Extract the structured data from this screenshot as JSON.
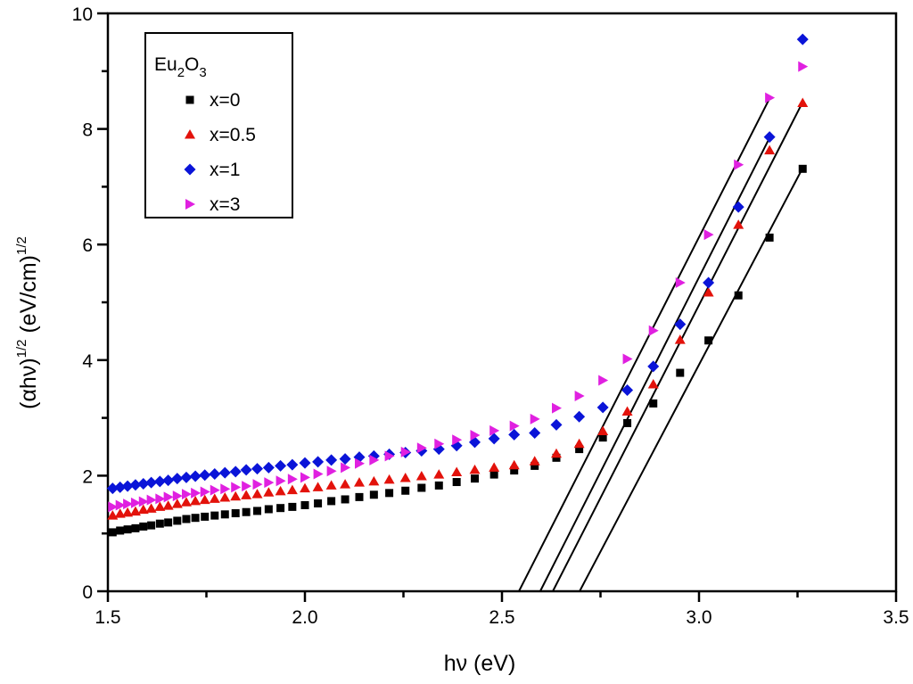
{
  "chart_data": {
    "type": "scatter",
    "title": "",
    "xlabel": "hν (eV)",
    "ylabel_parts": {
      "base1": "(αhν)",
      "exp1": "1/2",
      "base2": " (eV/cm)",
      "exp2": "1/2"
    },
    "xlim": [
      1.5,
      3.5
    ],
    "ylim": [
      0,
      10
    ],
    "x_ticks": [
      "1.5",
      "2.0",
      "2.5",
      "3.0",
      "3.5"
    ],
    "x_tick_values": [
      1.5,
      2.0,
      2.5,
      3.0,
      3.5
    ],
    "x_minor_ticks": [
      1.75,
      2.25,
      2.75,
      3.25
    ],
    "y_ticks": [
      "0",
      "2",
      "4",
      "6",
      "8",
      "10"
    ],
    "y_tick_values": [
      0,
      2,
      4,
      6,
      8,
      10
    ],
    "y_minor_ticks": [
      1,
      3,
      5,
      7,
      9
    ],
    "grid": false,
    "legend": {
      "title_base": "Eu",
      "title_sub1": "2",
      "title_mid": "O",
      "title_sub2": "3",
      "placement": "top-left"
    },
    "x": [
      1.512,
      1.531,
      1.55,
      1.57,
      1.59,
      1.61,
      1.632,
      1.653,
      1.676,
      1.699,
      1.722,
      1.746,
      1.771,
      1.797,
      1.824,
      1.851,
      1.879,
      1.908,
      1.938,
      1.968,
      2.0,
      2.033,
      2.067,
      2.102,
      2.138,
      2.175,
      2.214,
      2.255,
      2.296,
      2.34,
      2.385,
      2.431,
      2.48,
      2.531,
      2.583,
      2.638,
      2.696,
      2.756,
      2.818,
      2.884,
      2.952,
      3.024,
      3.1,
      3.179,
      3.263
    ],
    "series": [
      {
        "name": "x=0",
        "marker": "square",
        "color": "#000000",
        "values": [
          1.02,
          1.05,
          1.07,
          1.09,
          1.12,
          1.14,
          1.17,
          1.19,
          1.22,
          1.25,
          1.27,
          1.29,
          1.31,
          1.33,
          1.35,
          1.37,
          1.39,
          1.42,
          1.44,
          1.46,
          1.49,
          1.52,
          1.56,
          1.59,
          1.63,
          1.67,
          1.7,
          1.74,
          1.79,
          1.83,
          1.89,
          1.95,
          2.02,
          2.09,
          2.17,
          2.31,
          2.46,
          2.66,
          2.91,
          3.25,
          3.78,
          4.34,
          5.12,
          6.12,
          7.31
        ],
        "fit_line": {
          "x": [
            2.697,
            3.262
          ],
          "y": [
            0,
            7.31
          ]
        }
      },
      {
        "name": "x=0.5",
        "marker": "triangle-up",
        "color": "#e3120b",
        "values": [
          1.31,
          1.34,
          1.36,
          1.38,
          1.41,
          1.43,
          1.46,
          1.48,
          1.51,
          1.54,
          1.56,
          1.58,
          1.6,
          1.62,
          1.64,
          1.66,
          1.68,
          1.71,
          1.73,
          1.75,
          1.78,
          1.8,
          1.83,
          1.85,
          1.88,
          1.9,
          1.93,
          1.96,
          1.99,
          2.02,
          2.06,
          2.1,
          2.14,
          2.18,
          2.25,
          2.38,
          2.55,
          2.77,
          3.11,
          3.58,
          4.35,
          5.17,
          6.34,
          7.63,
          8.45
        ],
        "fit_line": {
          "x": [
            2.629,
            3.262
          ],
          "y": [
            0,
            8.45
          ]
        }
      },
      {
        "name": "x=1",
        "marker": "diamond",
        "color": "#0a14d8",
        "values": [
          1.78,
          1.8,
          1.82,
          1.84,
          1.86,
          1.88,
          1.9,
          1.92,
          1.95,
          1.97,
          1.99,
          2.01,
          2.03,
          2.05,
          2.07,
          2.1,
          2.12,
          2.14,
          2.17,
          2.19,
          2.22,
          2.24,
          2.27,
          2.29,
          2.32,
          2.34,
          2.37,
          2.4,
          2.43,
          2.46,
          2.52,
          2.58,
          2.64,
          2.71,
          2.74,
          2.88,
          3.02,
          3.18,
          3.48,
          3.89,
          4.62,
          5.34,
          6.65,
          7.86,
          9.55
        ],
        "fit_line": {
          "x": [
            2.597,
            3.18
          ],
          "y": [
            0,
            7.86
          ]
        }
      },
      {
        "name": "x=3",
        "marker": "triangle-right",
        "color": "#e020e0",
        "values": [
          1.46,
          1.49,
          1.51,
          1.53,
          1.55,
          1.58,
          1.6,
          1.63,
          1.65,
          1.68,
          1.7,
          1.72,
          1.75,
          1.77,
          1.8,
          1.82,
          1.85,
          1.88,
          1.91,
          1.94,
          1.97,
          2.03,
          2.08,
          2.14,
          2.21,
          2.27,
          2.34,
          2.41,
          2.48,
          2.55,
          2.62,
          2.7,
          2.78,
          2.86,
          2.98,
          3.17,
          3.38,
          3.65,
          4.02,
          4.51,
          5.34,
          6.17,
          7.38,
          8.54,
          9.08
        ],
        "fit_line": {
          "x": [
            2.543,
            3.18
          ],
          "y": [
            0,
            8.54
          ]
        }
      }
    ]
  }
}
